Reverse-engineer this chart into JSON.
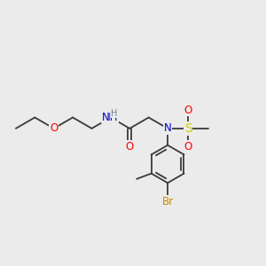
{
  "background_color": "#ebebeb",
  "bond_color": "#3a3a3a",
  "figsize": [
    3.0,
    3.0
  ],
  "dpi": 100,
  "atom_colors": {
    "O": "#ff0000",
    "N": "#0000cc",
    "S": "#cccc00",
    "Br": "#cc8800",
    "H_gray": "#708090"
  },
  "font_size_main": 8.5,
  "font_size_small": 7.0,
  "bond_lw": 1.3
}
